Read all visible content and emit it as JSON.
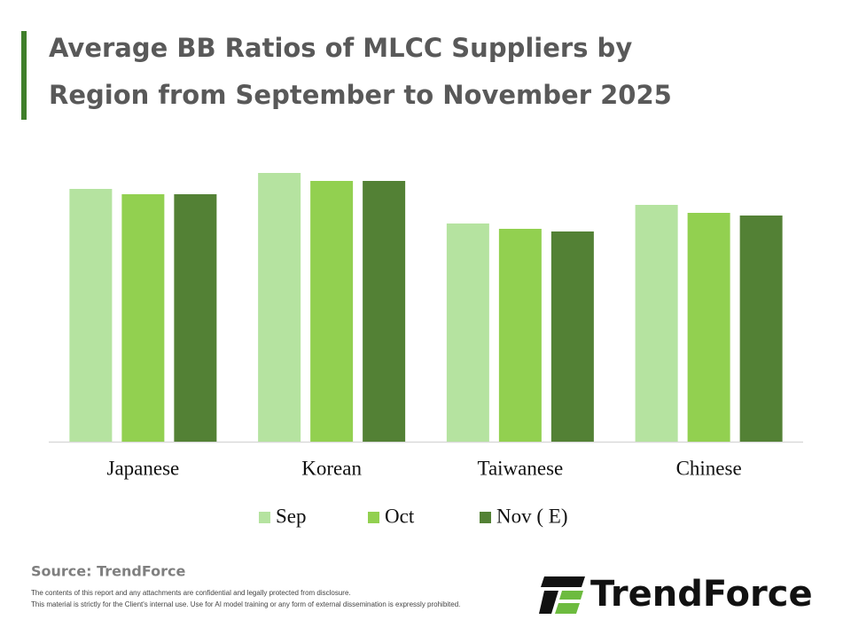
{
  "chart_data": {
    "type": "bar",
    "title_lines": [
      "Average BB Ratios of MLCC Suppliers by",
      "Region from September to November 2025"
    ],
    "categories": [
      "Japanese",
      "Korean",
      "Taiwanese",
      "Chinese"
    ],
    "series": [
      {
        "name": "Sep",
        "color": "#b5e3a0",
        "values": [
          0.95,
          1.01,
          0.82,
          0.89
        ]
      },
      {
        "name": "Oct",
        "color": "#92d050",
        "values": [
          0.93,
          0.98,
          0.8,
          0.86
        ]
      },
      {
        "name": "Nov ( E)",
        "color": "#538135",
        "values": [
          0.93,
          0.98,
          0.79,
          0.85
        ]
      }
    ],
    "ylim": [
      0,
      1.1
    ],
    "legend": "bottom",
    "source": "Source: TrendForce",
    "disclaimer": [
      "The contents of this report and any attachments are confidential and legally protected from disclosure.",
      "This material is strictly for the Client's internal use. Use for AI model training or any form of external dissemination is expressly prohibited."
    ],
    "logo": "TrendForce"
  }
}
